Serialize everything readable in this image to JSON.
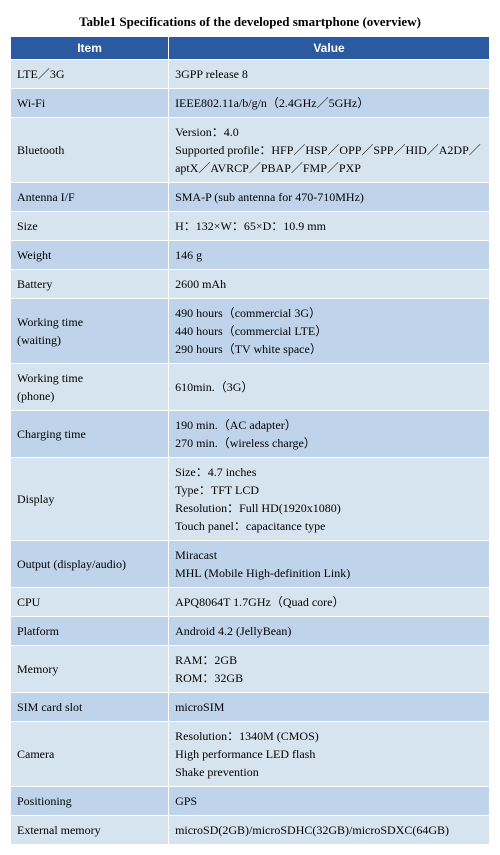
{
  "caption": "Table1 Specifications of the developed smartphone (overview)",
  "headers": {
    "item": "Item",
    "value": "Value"
  },
  "rows": [
    {
      "item": "LTE／3G",
      "value": "3GPP release 8"
    },
    {
      "item": "Wi-Fi",
      "value": "IEEE802.11a/b/g/n（2.4GHz／5GHz）"
    },
    {
      "item": "Bluetooth",
      "value": "Version：4.0\nSupported profile：HFP／HSP／OPP／SPP／HID／A2DP／aptX／AVRCP／PBAP／FMP／PXP"
    },
    {
      "item": "Antenna I/F",
      "value": "SMA-P (sub antenna for 470-710MHz)"
    },
    {
      "item": "Size",
      "value": "H：132×W：65×D：10.9 mm"
    },
    {
      "item": "Weight",
      "value": "146 g"
    },
    {
      "item": "Battery",
      "value": "2600 mAh"
    },
    {
      "item": "Working time\n(waiting)",
      "value": "490 hours（commercial 3G）\n440 hours（commercial LTE）\n290 hours（TV white space）"
    },
    {
      "item": "Working time\n(phone)",
      "value": "610min.（3G）"
    },
    {
      "item": "Charging time",
      "value": "190 min.（AC adapter）\n270 min.（wireless charge）"
    },
    {
      "item": "Display",
      "value": "Size：4.7 inches\nType：TFT LCD\nResolution：Full HD(1920x1080)\nTouch panel：capacitance type"
    },
    {
      "item": "Output (display/audio)",
      "value": "Miracast\nMHL (Mobile High-definition Link)"
    },
    {
      "item": "CPU",
      "value": "APQ8064T 1.7GHz（Quad core）"
    },
    {
      "item": "Platform",
      "value": "Android 4.2 (JellyBean)"
    },
    {
      "item": "Memory",
      "value": "RAM：2GB\nROM：32GB"
    },
    {
      "item": "SIM card slot",
      "value": "microSIM"
    },
    {
      "item": "Camera",
      "value": "Resolution：1340M (CMOS)\nHigh performance LED flash\nShake prevention"
    },
    {
      "item": "Positioning",
      "value": "GPS"
    },
    {
      "item": "External memory",
      "value": "microSD(2GB)/microSDHC(32GB)/microSDXC(64GB)"
    }
  ],
  "style": {
    "header_bg": "#2c5aa0",
    "header_fg": "#ffffff",
    "row_odd_bg": "#d6e4f0",
    "row_even_bg": "#bfd4ea",
    "border_color": "#ffffff",
    "font_size_body": 12,
    "font_size_caption": 13
  }
}
